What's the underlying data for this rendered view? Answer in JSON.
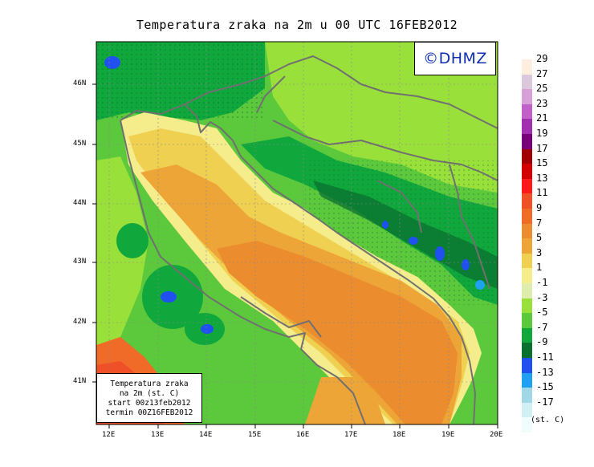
{
  "title": "Temperatura zraka na 2m u 00 UTC 16FEB2012",
  "logo": "©DHMZ",
  "info": {
    "line1": "Temperatura zraka",
    "line2": "na 2m (st. C)",
    "line3": "start 00z13feb2012",
    "line4": "termin 00Z16FEB2012"
  },
  "units": "(st. C)",
  "legend": [
    {
      "label": "29",
      "color": "#fdeee0"
    },
    {
      "label": "27",
      "color": "#dcc8dc"
    },
    {
      "label": "25",
      "color": "#d8a0d8"
    },
    {
      "label": "23",
      "color": "#c060c8"
    },
    {
      "label": "21",
      "color": "#a030b0"
    },
    {
      "label": "19",
      "color": "#780078"
    },
    {
      "label": "17",
      "color": "#a00000"
    },
    {
      "label": "15",
      "color": "#d40000"
    },
    {
      "label": "13",
      "color": "#ff1a1a"
    },
    {
      "label": "11",
      "color": "#f05028"
    },
    {
      "label": "9",
      "color": "#f06a28"
    },
    {
      "label": "7",
      "color": "#eb8c2e"
    },
    {
      "label": "5",
      "color": "#eea538"
    },
    {
      "label": "3",
      "color": "#f0d050"
    },
    {
      "label": "1",
      "color": "#f5ed8c"
    },
    {
      "label": "-1",
      "color": "#dfedac"
    },
    {
      "label": "-3",
      "color": "#9ae03a"
    },
    {
      "label": "-5",
      "color": "#5cc83c"
    },
    {
      "label": "-7",
      "color": "#10a83c"
    },
    {
      "label": "-9",
      "color": "#0a7030"
    },
    {
      "label": "-11",
      "color": "#2050f0"
    },
    {
      "label": "-13",
      "color": "#20a0f0"
    },
    {
      "label": "-15",
      "color": "#a0d8e8"
    },
    {
      "label": "-17",
      "color": "#d0f0f4"
    },
    {
      "label": "",
      "color": "#f0fcff"
    }
  ],
  "lon_labels": [
    "12E",
    "13E",
    "14E",
    "15E",
    "16E",
    "17E",
    "18E",
    "19E",
    "20E"
  ],
  "lat_labels": [
    "46N",
    "45N",
    "44N",
    "43N",
    "42N",
    "41N"
  ]
}
